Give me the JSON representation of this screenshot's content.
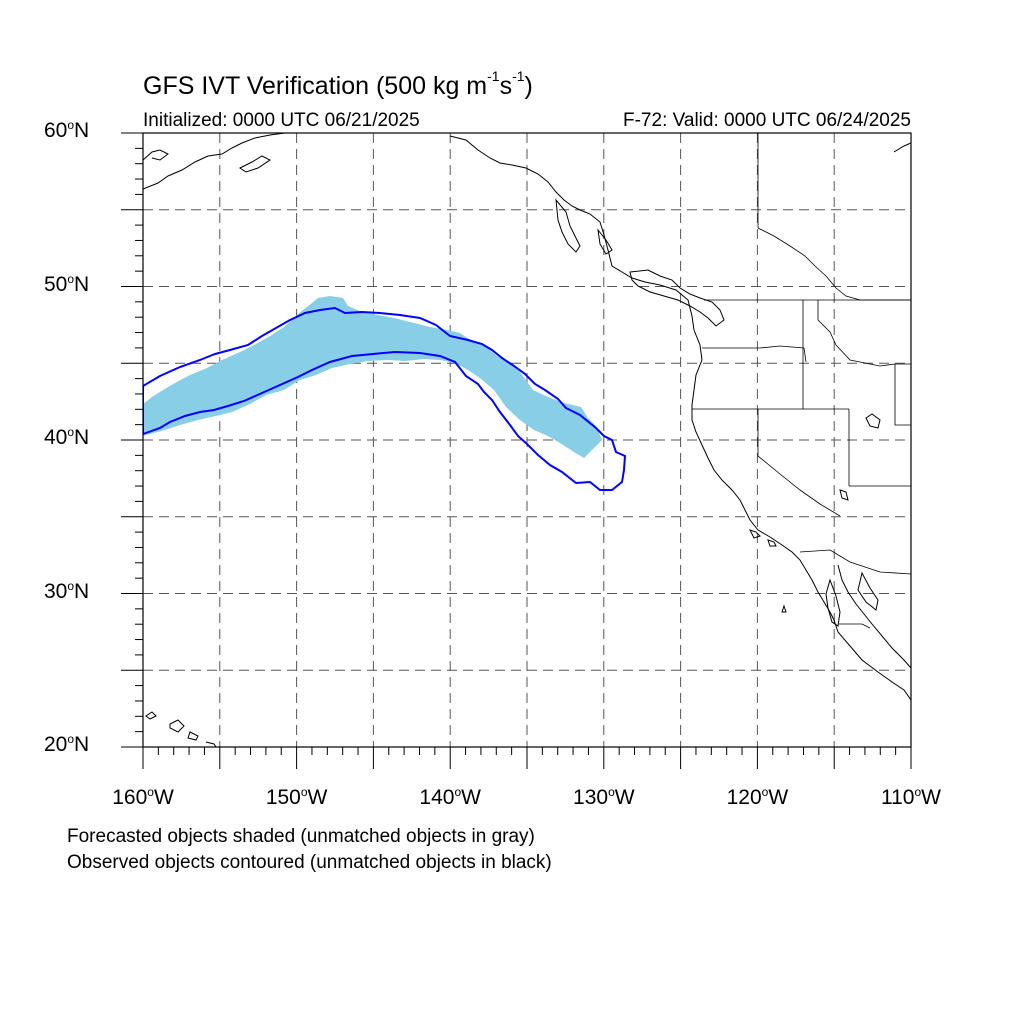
{
  "title": {
    "main": "GFS IVT Verification (500 kg m",
    "sup1": "-1",
    "mid": "s",
    "sup2": "-1",
    "end": ")"
  },
  "initialized": "Initialized: 0000 UTC 06/21/2025",
  "valid": "F-72: Valid: 0000 UTC 06/24/2025",
  "map": {
    "lat_range": [
      20,
      60
    ],
    "lon_range": [
      -160,
      -110
    ],
    "grid_lat": [
      25,
      30,
      35,
      40,
      45,
      50,
      55
    ],
    "grid_lon": [
      -155,
      -150,
      -145,
      -140,
      -135,
      -130,
      -125,
      -120,
      -115
    ],
    "forecast_fill_color": "#87CEE6",
    "observed_contour_color": "#0000FF",
    "coast_color": "#000000"
  },
  "lat_labels": [
    {
      "deg": "60",
      "hemi": "N",
      "value": 60
    },
    {
      "deg": "50",
      "hemi": "N",
      "value": 50
    },
    {
      "deg": "40",
      "hemi": "N",
      "value": 40
    },
    {
      "deg": "30",
      "hemi": "N",
      "value": 30
    },
    {
      "deg": "20",
      "hemi": "N",
      "value": 20
    }
  ],
  "lon_labels": [
    {
      "deg": "160",
      "hemi": "W",
      "value": -160
    },
    {
      "deg": "150",
      "hemi": "W",
      "value": -150
    },
    {
      "deg": "140",
      "hemi": "W",
      "value": -140
    },
    {
      "deg": "130",
      "hemi": "W",
      "value": -130
    },
    {
      "deg": "120",
      "hemi": "W",
      "value": -120
    },
    {
      "deg": "110",
      "hemi": "W",
      "value": -110
    }
  ],
  "notes": {
    "forecast": "Forecasted objects shaded (unmatched objects in gray)",
    "observed": "Observed objects contoured (unmatched objects in black)"
  }
}
